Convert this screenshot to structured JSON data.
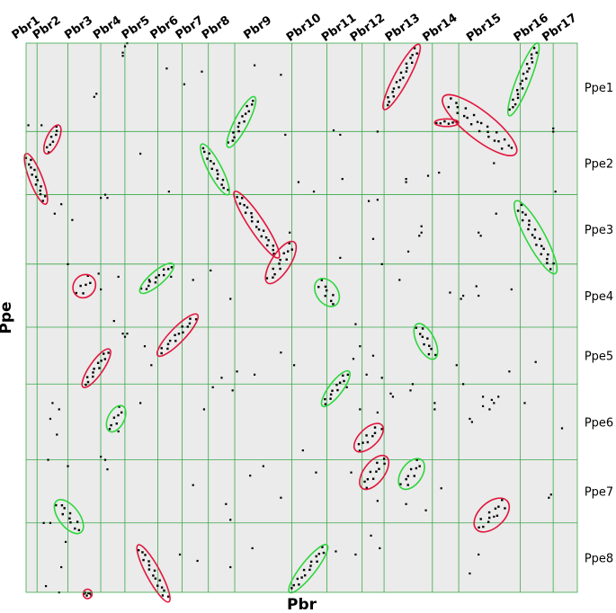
{
  "chart_data": {
    "type": "scatter",
    "title": "",
    "xlabel": "Pbr",
    "ylabel": "Ppe",
    "x_groups": [
      "Pbr1",
      "Pbr2",
      "Pbr3",
      "Pbr4",
      "Pbr5",
      "Pbr6",
      "Pbr7",
      "Pbr8",
      "Pbr9",
      "Pbr10",
      "Pbr11",
      "Pbr12",
      "Pbr13",
      "Pbr14",
      "Pbr15",
      "Pbr16",
      "Pbr17"
    ],
    "y_groups": [
      "Ppe1",
      "Ppe2",
      "Ppe3",
      "Ppe4",
      "Ppe5",
      "Ppe6",
      "Ppe7",
      "Ppe8"
    ],
    "x_bounds": [
      0,
      5,
      19,
      34,
      45,
      60,
      71,
      83,
      95,
      121,
      137,
      153,
      163,
      185,
      197,
      225,
      240,
      251
    ],
    "y_bounds": [
      0,
      14,
      24,
      35,
      45,
      54,
      66,
      76,
      87
    ],
    "xlim": [
      0,
      251
    ],
    "ylim": [
      0,
      87
    ],
    "y_inverted": true,
    "grid": true,
    "colors": {
      "red": "#e2163c",
      "green": "#2ed63d",
      "grid": "#3aa84a",
      "background": "#ebebeb",
      "points": "#000000"
    },
    "synteny_blocks": [
      {
        "color": "red",
        "x": [
          0,
          9
        ],
        "y": [
          17.5,
          25.5
        ],
        "tilt": 0.9
      },
      {
        "color": "red",
        "x": [
          9,
          15
        ],
        "y": [
          13,
          17.5
        ],
        "tilt": -0.9
      },
      {
        "color": "red",
        "x": [
          23,
          30
        ],
        "y": [
          37,
          40
        ],
        "tilt": -0.3
      },
      {
        "color": "red",
        "x": [
          26,
          38
        ],
        "y": [
          48.5,
          54.5
        ],
        "tilt": -0.9
      },
      {
        "color": "red",
        "x": [
          60,
          78
        ],
        "y": [
          43,
          49.5
        ],
        "tilt": -0.9
      },
      {
        "color": "red",
        "x": [
          95,
          115
        ],
        "y": [
          23.5,
          34
        ],
        "tilt": 0.9
      },
      {
        "color": "red",
        "x": [
          110,
          122
        ],
        "y": [
          31.5,
          38
        ],
        "tilt": -0.7
      },
      {
        "color": "red",
        "x": [
          150,
          162
        ],
        "y": [
          60.5,
          64.5
        ],
        "tilt": -0.7
      },
      {
        "color": "red",
        "x": [
          153,
          164
        ],
        "y": [
          65.5,
          70.5
        ],
        "tilt": -0.6
      },
      {
        "color": "red",
        "x": [
          163,
          179
        ],
        "y": [
          0.2,
          10.5
        ],
        "tilt": -0.9
      },
      {
        "color": "red",
        "x": [
          186,
          197
        ],
        "y": [
          12,
          13.2
        ],
        "tilt": 0
      },
      {
        "color": "red",
        "x": [
          190,
          223
        ],
        "y": [
          8.5,
          17.5
        ],
        "tilt": 0.7
      },
      {
        "color": "red",
        "x": [
          205,
          219
        ],
        "y": [
          72.5,
          77
        ],
        "tilt": -0.5
      },
      {
        "color": "red",
        "x": [
          51,
          65
        ],
        "y": [
          79.5,
          88.5
        ],
        "tilt": 0.9
      },
      {
        "color": "red",
        "x": [
          26,
          30
        ],
        "y": [
          86.5,
          88
        ],
        "tilt": 0
      },
      {
        "color": "green",
        "x": [
          92,
          104
        ],
        "y": [
          8.5,
          16.5
        ],
        "tilt": -0.9
      },
      {
        "color": "green",
        "x": [
          80,
          92
        ],
        "y": [
          16,
          24
        ],
        "tilt": 0.9
      },
      {
        "color": "green",
        "x": [
          52,
          67
        ],
        "y": [
          35,
          39.5
        ],
        "tilt": -0.9
      },
      {
        "color": "green",
        "x": [
          133,
          141
        ],
        "y": [
          37.5,
          41.5
        ],
        "tilt": 0.4
      },
      {
        "color": "green",
        "x": [
          178,
          186
        ],
        "y": [
          44.5,
          50
        ],
        "tilt": 0.6
      },
      {
        "color": "green",
        "x": [
          135,
          147
        ],
        "y": [
          52,
          57.5
        ],
        "tilt": -0.9
      },
      {
        "color": "green",
        "x": [
          38,
          44
        ],
        "y": [
          57.5,
          61.5
        ],
        "tilt": -0.6
      },
      {
        "color": "green",
        "x": [
          171,
          180
        ],
        "y": [
          66,
          70.5
        ],
        "tilt": -0.5
      },
      {
        "color": "green",
        "x": [
          14,
          25
        ],
        "y": [
          72.5,
          77.5
        ],
        "tilt": 0.6
      },
      {
        "color": "green",
        "x": [
          120,
          137
        ],
        "y": [
          79.5,
          87
        ],
        "tilt": -0.9
      },
      {
        "color": "green",
        "x": [
          220,
          233
        ],
        "y": [
          0,
          11.5
        ],
        "tilt": -0.9
      },
      {
        "color": "green",
        "x": [
          223,
          241
        ],
        "y": [
          25,
          36.5
        ],
        "tilt": 0.8
      }
    ],
    "scattered_points": [
      [
        46,
        0
      ],
      [
        45,
        0.5
      ],
      [
        44,
        1.5
      ],
      [
        44,
        2
      ],
      [
        104,
        3.5
      ],
      [
        80,
        4.5
      ],
      [
        72,
        6.5
      ],
      [
        32,
        8
      ],
      [
        31,
        8.5
      ],
      [
        7,
        13
      ],
      [
        1,
        13
      ],
      [
        118,
        14.5
      ],
      [
        140,
        13.8
      ],
      [
        143,
        14.5
      ],
      [
        160,
        14
      ],
      [
        240,
        13.5
      ],
      [
        240,
        14
      ],
      [
        52,
        17.5
      ],
      [
        36,
        24
      ],
      [
        37,
        24.5
      ],
      [
        34,
        24.5
      ],
      [
        65,
        23.5
      ],
      [
        124,
        22
      ],
      [
        131,
        23.5
      ],
      [
        156,
        25
      ],
      [
        160,
        24.8
      ],
      [
        173,
        21.5
      ],
      [
        173,
        22
      ],
      [
        144,
        21.5
      ],
      [
        183,
        21
      ],
      [
        188,
        20.5
      ],
      [
        213,
        19
      ],
      [
        241,
        23.5
      ],
      [
        13,
        27
      ],
      [
        21,
        28
      ],
      [
        19,
        35
      ],
      [
        33,
        36.5
      ],
      [
        34,
        39
      ],
      [
        42,
        37
      ],
      [
        56,
        37.5
      ],
      [
        66,
        37
      ],
      [
        76,
        37.5
      ],
      [
        93,
        40.5
      ],
      [
        143,
        34
      ],
      [
        158,
        31
      ],
      [
        180,
        30
      ],
      [
        179,
        30.5
      ],
      [
        180,
        29
      ],
      [
        162,
        35
      ],
      [
        170,
        37.5
      ],
      [
        174,
        33
      ],
      [
        206,
        30
      ],
      [
        207,
        30.5
      ],
      [
        214,
        27
      ],
      [
        193,
        39.5
      ],
      [
        199,
        40
      ],
      [
        198,
        40.5
      ],
      [
        205,
        38.5
      ],
      [
        206,
        40
      ],
      [
        221,
        39
      ],
      [
        46,
        46
      ],
      [
        44,
        46
      ],
      [
        45,
        46.5
      ],
      [
        54,
        48
      ],
      [
        89,
        53
      ],
      [
        96,
        52
      ],
      [
        104,
        52.5
      ],
      [
        12,
        57
      ],
      [
        15,
        58
      ],
      [
        11,
        59.5
      ],
      [
        14,
        62
      ],
      [
        42,
        61.5
      ],
      [
        81,
        58
      ],
      [
        85,
        54.5
      ],
      [
        94,
        55
      ],
      [
        146,
        54.5
      ],
      [
        152,
        58
      ],
      [
        160,
        58.5
      ],
      [
        166,
        55.5
      ],
      [
        167,
        56
      ],
      [
        162,
        53
      ],
      [
        155,
        52.5
      ],
      [
        149,
        50
      ],
      [
        158,
        49.5
      ],
      [
        152,
        48
      ],
      [
        150,
        44.5
      ],
      [
        196,
        51
      ],
      [
        199,
        54
      ],
      [
        208,
        57.5
      ],
      [
        211,
        58
      ],
      [
        212,
        56.5
      ],
      [
        213,
        57
      ],
      [
        215,
        56
      ],
      [
        208,
        56
      ],
      [
        220,
        52
      ],
      [
        227,
        57
      ],
      [
        244,
        61
      ],
      [
        232,
        50.5
      ],
      [
        202,
        59.5
      ],
      [
        203,
        60
      ],
      [
        10,
        66
      ],
      [
        19,
        67
      ],
      [
        34,
        65.5
      ],
      [
        36,
        66
      ],
      [
        37,
        67.5
      ],
      [
        76,
        70
      ],
      [
        102,
        68.5
      ],
      [
        126,
        64.5
      ],
      [
        132,
        68
      ],
      [
        148,
        68
      ],
      [
        160,
        72.5
      ],
      [
        173,
        73
      ],
      [
        182,
        74
      ],
      [
        189,
        70.5
      ],
      [
        239,
        71.5
      ],
      [
        238,
        72
      ],
      [
        213,
        75
      ],
      [
        8,
        76
      ],
      [
        11,
        76
      ],
      [
        91,
        73
      ],
      [
        93,
        75.5
      ],
      [
        18,
        79
      ],
      [
        16,
        83
      ],
      [
        70,
        81
      ],
      [
        78,
        82
      ],
      [
        93,
        83
      ],
      [
        103,
        80
      ],
      [
        141,
        80.5
      ],
      [
        150,
        81
      ],
      [
        157,
        78
      ],
      [
        161,
        80
      ],
      [
        202,
        84
      ],
      [
        206,
        81
      ],
      [
        9,
        86
      ],
      [
        15,
        87
      ],
      [
        108,
        67
      ],
      [
        116,
        72
      ],
      [
        57,
        51
      ],
      [
        116,
        49
      ],
      [
        64,
        4
      ],
      [
        16,
        25.5
      ],
      [
        40,
        44
      ],
      [
        120,
        30
      ],
      [
        84,
        36
      ],
      [
        52,
        57
      ],
      [
        186,
        57
      ],
      [
        186,
        58
      ],
      [
        116,
        5
      ],
      [
        122,
        51
      ],
      [
        175,
        55
      ],
      [
        176,
        54
      ]
    ]
  }
}
